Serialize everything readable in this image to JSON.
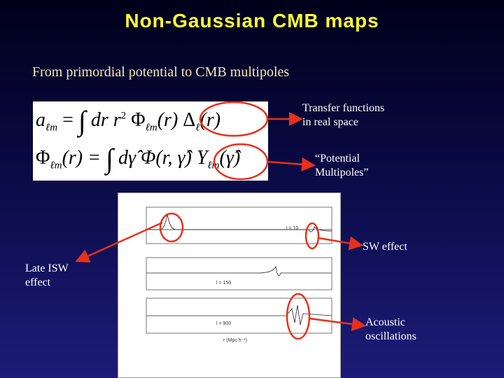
{
  "header": {
    "title": "Non-Gaussian CMB maps",
    "subtitle": "From primordial potential to CMB multipoles"
  },
  "equations": [
    [
      "a",
      "ℓm",
      "=",
      "∫",
      "dr r",
      "2",
      "Φ",
      "ℓm",
      "(r)",
      "Δ",
      "ℓ",
      "(r)"
    ],
    [
      "Φ",
      "ℓm",
      "(r) =",
      "∫",
      "dγ̂",
      "Φ(r, γ̂)",
      "Y",
      "ℓm",
      "(γ̂)"
    ]
  ],
  "annotations": {
    "transfer": [
      "Transfer functions",
      "in real space"
    ],
    "potential": [
      "“Potential",
      "Multipoles”"
    ],
    "sw": "SW effect",
    "isw": [
      "Late ISW",
      "effect"
    ],
    "acoustic": [
      "Acoustic",
      "oscillations"
    ]
  },
  "plot": {
    "panels": [
      "l = 10",
      "l = 150",
      "l = 900"
    ],
    "xlabel": "r (Mpc h⁻¹)"
  }
}
